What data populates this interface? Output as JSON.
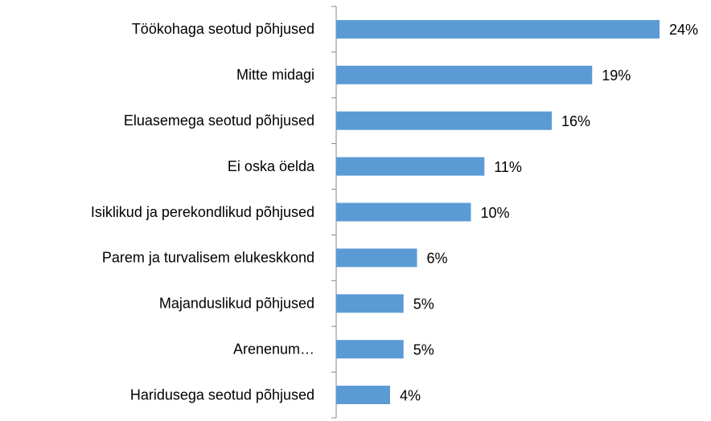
{
  "chart_data": {
    "type": "bar",
    "orientation": "horizontal",
    "categories": [
      "Töökohaga seotud põhjused",
      "Mitte midagi",
      "Eluasemega seotud põhjused",
      "Ei oska öelda",
      "Isiklikud ja perekondlikud põhjused",
      "Parem ja turvalisem elukeskkond",
      "Majanduslikud põhjused",
      "Arenenum…",
      "Haridusega seotud põhjused"
    ],
    "values": [
      24,
      19,
      16,
      11,
      10,
      6,
      5,
      5,
      4
    ],
    "value_labels": [
      "24%",
      "19%",
      "16%",
      "11%",
      "10%",
      "6%",
      "5%",
      "5%",
      "4%"
    ],
    "color": "#5b9bd5"
  }
}
